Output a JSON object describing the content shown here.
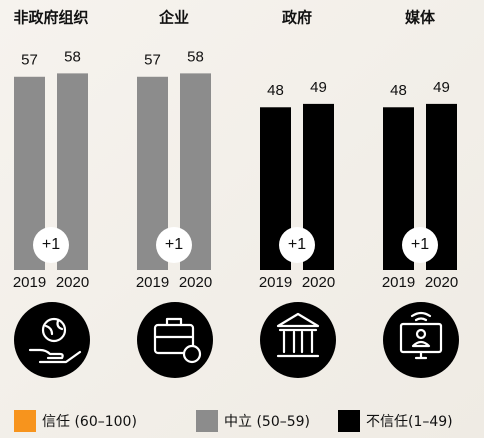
{
  "chart_data": [
    {
      "type": "bar",
      "title": "非政府组织",
      "categories": [
        "2019",
        "2020"
      ],
      "values": [
        57,
        58
      ],
      "annotation": "+1",
      "color": "#8c8c8c"
    },
    {
      "type": "bar",
      "title": "企业",
      "categories": [
        "2019",
        "2020"
      ],
      "values": [
        57,
        58
      ],
      "annotation": "+1",
      "color": "#8c8c8c"
    },
    {
      "type": "bar",
      "title": "政府",
      "categories": [
        "2019",
        "2020"
      ],
      "values": [
        48,
        49
      ],
      "annotation": "+1",
      "color": "#000000"
    },
    {
      "type": "bar",
      "title": "媒体",
      "categories": [
        "2019",
        "2020"
      ],
      "values": [
        48,
        49
      ],
      "annotation": "+1",
      "color": "#000000"
    }
  ],
  "legend": [
    {
      "name": "信任 (60–100)",
      "color": "#f7941d"
    },
    {
      "name": "中立 (50–59)",
      "color": "#8c8c8c"
    },
    {
      "name": "不信任(1–49)",
      "color": "#000000"
    }
  ]
}
